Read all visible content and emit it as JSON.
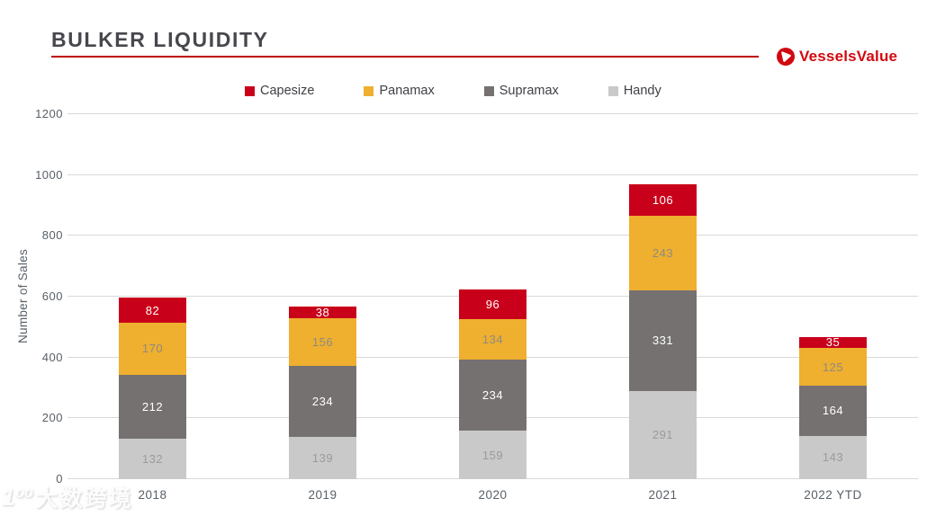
{
  "header": {
    "title": "BULKER LIQUIDITY",
    "logo": {
      "name": "VesselsValue",
      "color": "#D10A10"
    }
  },
  "colors": {
    "title_text": "#47474E",
    "title_underline": "#C00000",
    "axis_text": "#596067",
    "gridline": "#D9D9D9"
  },
  "chart_data": {
    "type": "bar",
    "stacked": true,
    "title": "BULKER LIQUIDITY",
    "ylabel": "Number of Sales",
    "xlabel": "",
    "ylim": [
      0,
      1200
    ],
    "yticks": [
      0,
      200,
      400,
      600,
      800,
      1000,
      1200
    ],
    "grid": true,
    "legend_position": "top",
    "legend_entries": [
      "Capesize",
      "Panamax",
      "Supramax",
      "Handy"
    ],
    "categories": [
      "2018",
      "2019",
      "2020",
      "2021",
      "2022 YTD"
    ],
    "series": [
      {
        "name": "Capesize",
        "color": "#C9001A",
        "label_color": "#FFFFFF",
        "values": [
          82,
          38,
          96,
          106,
          35
        ]
      },
      {
        "name": "Panamax",
        "color": "#EFAF2F",
        "label_color": "#8E8B80",
        "values": [
          170,
          156,
          134,
          243,
          125
        ]
      },
      {
        "name": "Supramax",
        "color": "#767171",
        "label_color": "#FFFFFF",
        "values": [
          212,
          234,
          234,
          331,
          164
        ]
      },
      {
        "name": "Handy",
        "color": "#C9C9C9",
        "label_color": "#9B9B9B",
        "values": [
          132,
          139,
          159,
          291,
          143
        ]
      }
    ],
    "totals": [
      596,
      567,
      623,
      971,
      467
    ]
  },
  "watermark": {
    "icon_text": "1ºº",
    "text": "大数跨境"
  }
}
